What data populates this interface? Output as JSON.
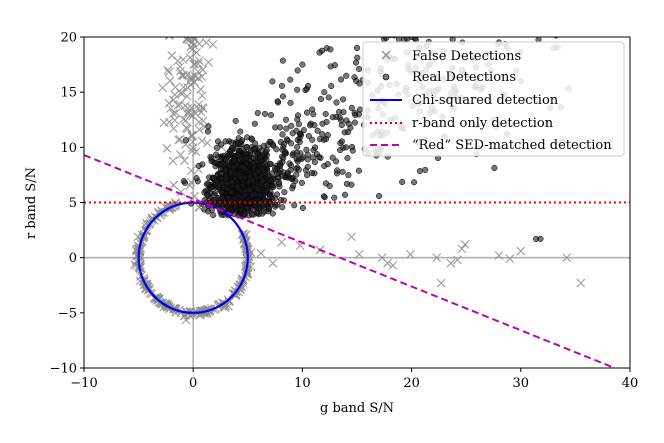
{
  "chart_data": {
    "type": "scatter",
    "xlabel": "g band S/N",
    "ylabel": "r band S/N",
    "xlim": [
      -10,
      40
    ],
    "ylim": [
      -10,
      20
    ],
    "xticks": [
      -10,
      0,
      10,
      20,
      30,
      40
    ],
    "yticks": [
      -10,
      -5,
      0,
      5,
      10,
      15,
      20
    ],
    "xtick_labels": [
      "−10",
      "0",
      "10",
      "20",
      "30",
      "40"
    ],
    "ytick_labels": [
      "−10",
      "−5",
      "0",
      "5",
      "10",
      "15",
      "20"
    ],
    "legend_location": "top-right",
    "series": [
      {
        "name": "False Detections",
        "marker": "x",
        "color": "#8c8c8c",
        "notes": "ring of noise at radius ~5 around origin plus a column near g=0 and scattered points",
        "points": [
          [
            14.5,
            1.9
          ],
          [
            15.2,
            0.3
          ],
          [
            17.3,
            0.0
          ],
          [
            17.8,
            -0.5
          ],
          [
            18.3,
            -0.7
          ],
          [
            19.9,
            0.3
          ],
          [
            22.3,
            0.0
          ],
          [
            22.7,
            -2.3
          ],
          [
            23.6,
            -0.5
          ],
          [
            24.2,
            -0.2
          ],
          [
            24.6,
            0.8
          ],
          [
            24.9,
            1.2
          ],
          [
            28.0,
            0.2
          ],
          [
            29.0,
            -0.1
          ],
          [
            30.0,
            0.6
          ],
          [
            34.2,
            0.0
          ],
          [
            35.5,
            -2.3
          ],
          [
            8.1,
            1.4
          ],
          [
            9.8,
            1.1
          ],
          [
            11.6,
            0.7
          ],
          [
            6.2,
            0.4
          ],
          [
            7.3,
            -0.5
          ],
          [
            -2.8,
            15.4
          ],
          [
            -2.2,
            12.3
          ],
          [
            -1.8,
            11.7
          ],
          [
            -2.4,
            9.9
          ],
          [
            -1.2,
            17.3
          ],
          [
            0.3,
            18.6
          ],
          [
            1.2,
            19.5
          ],
          [
            -0.8,
            8.8
          ],
          [
            1.4,
            17.7
          ],
          [
            -1.4,
            13.8
          ],
          [
            0.8,
            16.4
          ]
        ]
      },
      {
        "name": "Real Detections",
        "marker": "o",
        "color": "#1a1a1a",
        "notes": "dense cloud above r~4, spreading to large S/N",
        "points": [
          [
            13.9,
            5.7
          ],
          [
            31.4,
            1.7
          ],
          [
            31.8,
            1.7
          ],
          [
            12.5,
            6.5
          ],
          [
            19.0,
            12.0
          ],
          [
            24.0,
            14.5
          ],
          [
            16.0,
            17.0
          ],
          [
            22.0,
            18.5
          ],
          [
            27.0,
            17.5
          ],
          [
            26.0,
            12.0
          ],
          [
            30.0,
            16.0
          ],
          [
            20.0,
            20.0
          ],
          [
            14.0,
            10.0
          ],
          [
            17.5,
            14.0
          ],
          [
            10.0,
            17.5
          ],
          [
            8.5,
            12.5
          ],
          [
            11.0,
            13.0
          ],
          [
            12.0,
            15.0
          ],
          [
            9.5,
            9.5
          ],
          [
            7.0,
            10.5
          ],
          [
            16.0,
            9.5
          ],
          [
            21.0,
            15.5
          ],
          [
            28.0,
            19.5
          ],
          [
            33.0,
            19.0
          ],
          [
            25.0,
            16.5
          ],
          [
            15.0,
            19.0
          ],
          [
            18.5,
            18.0
          ],
          [
            23.0,
            11.0
          ]
        ]
      }
    ],
    "lines": [
      {
        "name": "Chi-squared detection",
        "style": "solid",
        "color": "#0000ee",
        "shape": "circle",
        "center": [
          0,
          0
        ],
        "radius": 5
      },
      {
        "name": "r-band only detection",
        "style": "dotted",
        "color": "#ee0000",
        "shape": "horizontal",
        "y": 5
      },
      {
        "name": "“Red” SED-matched detection",
        "style": "dashed",
        "color": "#c000c0",
        "shape": "line",
        "from": [
          -10,
          9.3
        ],
        "to": [
          38.6,
          -10
        ]
      }
    ],
    "reference_lines": {
      "x": 0,
      "y": 0,
      "color": "#b0b0b0"
    }
  }
}
